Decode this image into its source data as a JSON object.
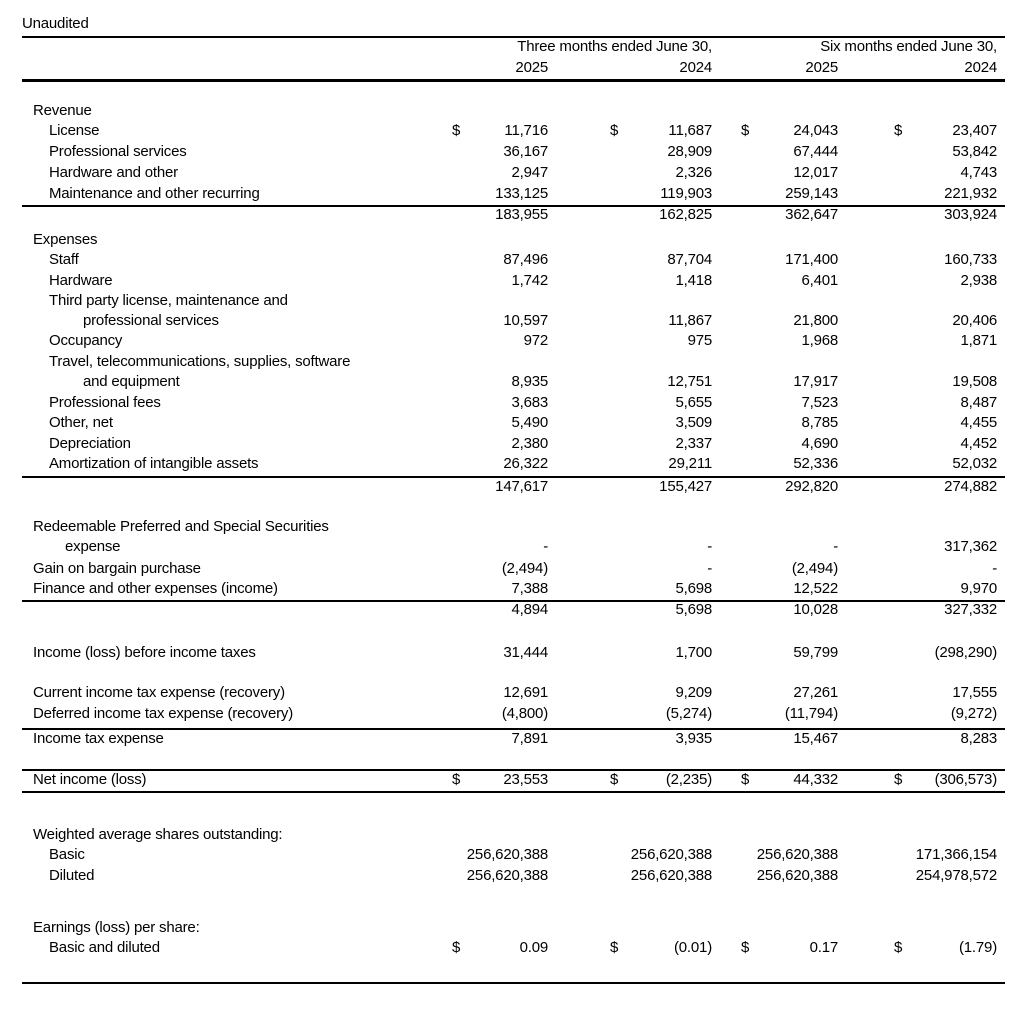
{
  "caption": "Unaudited",
  "header": {
    "group1": "Three months ended June 30,",
    "group2": "Six months ended June 30,",
    "years": [
      "2025",
      "2024",
      "2025",
      "2024"
    ]
  },
  "currency_symbol": "$",
  "rows": [
    {
      "label": "Revenue",
      "values": null
    },
    {
      "label": "License",
      "values": [
        "11,716",
        "11,687",
        "24,043",
        "23,407"
      ],
      "dollar": true
    },
    {
      "label": "Professional services",
      "values": [
        "36,167",
        "28,909",
        "67,444",
        "53,842"
      ]
    },
    {
      "label": "Hardware and other",
      "values": [
        "2,947",
        "2,326",
        "12,017",
        "4,743"
      ]
    },
    {
      "label": "Maintenance and other recurring",
      "values": [
        "133,125",
        "119,903",
        "259,143",
        "221,932"
      ]
    },
    {
      "label": "",
      "values": [
        "183,955",
        "162,825",
        "362,647",
        "303,924"
      ]
    },
    {
      "label": "Expenses",
      "values": null
    },
    {
      "label": "Staff",
      "values": [
        "87,496",
        "87,704",
        "171,400",
        "160,733"
      ]
    },
    {
      "label": "Hardware",
      "values": [
        "1,742",
        "1,418",
        "6,401",
        "2,938"
      ]
    },
    {
      "label": "Third party license, maintenance and",
      "values": null
    },
    {
      "label": "professional services",
      "values": [
        "10,597",
        "11,867",
        "21,800",
        "20,406"
      ]
    },
    {
      "label": "Occupancy",
      "values": [
        "972",
        "975",
        "1,968",
        "1,871"
      ]
    },
    {
      "label": "Travel, telecommunications, supplies, software",
      "values": null
    },
    {
      "label": "and equipment",
      "values": [
        "8,935",
        "12,751",
        "17,917",
        "19,508"
      ]
    },
    {
      "label": "Professional fees",
      "values": [
        "3,683",
        "5,655",
        "7,523",
        "8,487"
      ]
    },
    {
      "label": "Other, net",
      "values": [
        "5,490",
        "3,509",
        "8,785",
        "4,455"
      ]
    },
    {
      "label": "Depreciation",
      "values": [
        "2,380",
        "2,337",
        "4,690",
        "4,452"
      ]
    },
    {
      "label": "Amortization of intangible assets",
      "values": [
        "26,322",
        "29,211",
        "52,336",
        "52,032"
      ]
    },
    {
      "label": "",
      "values": [
        "147,617",
        "155,427",
        "292,820",
        "274,882"
      ]
    },
    {
      "label": "Redeemable Preferred and Special Securities",
      "values": null
    },
    {
      "label": "expense",
      "values": [
        "-",
        "-",
        "-",
        "317,362"
      ]
    },
    {
      "label": "Gain on bargain purchase",
      "values": [
        "(2,494)",
        "-",
        "(2,494)",
        "-"
      ]
    },
    {
      "label": "Finance and other expenses (income)",
      "values": [
        "7,388",
        "5,698",
        "12,522",
        "9,970"
      ]
    },
    {
      "label": "",
      "values": [
        "4,894",
        "5,698",
        "10,028",
        "327,332"
      ]
    },
    {
      "label": "Income (loss) before income taxes",
      "values": [
        "31,444",
        "1,700",
        "59,799",
        "(298,290)"
      ]
    },
    {
      "label": "Current income tax expense (recovery)",
      "values": [
        "12,691",
        "9,209",
        "27,261",
        "17,555"
      ]
    },
    {
      "label": "Deferred income tax expense (recovery)",
      "values": [
        "(4,800)",
        "(5,274)",
        "(11,794)",
        "(9,272)"
      ]
    },
    {
      "label": "Income tax expense",
      "values": [
        "7,891",
        "3,935",
        "15,467",
        "8,283"
      ]
    },
    {
      "label": "Net income (loss)",
      "values": [
        "23,553",
        "(2,235)",
        "44,332",
        "(306,573)"
      ],
      "dollar": true
    },
    {
      "label": "Weighted average shares outstanding:",
      "values": null
    },
    {
      "label": "Basic",
      "values": [
        "256,620,388",
        "256,620,388",
        "256,620,388",
        "171,366,154"
      ]
    },
    {
      "label": "Diluted",
      "values": [
        "256,620,388",
        "256,620,388",
        "256,620,388",
        "254,978,572"
      ]
    },
    {
      "label": "Earnings (loss) per share:",
      "values": null
    },
    {
      "label": "Basic and diluted",
      "values": [
        "0.09",
        "(0.01)",
        "0.17",
        "(1.79)"
      ],
      "dollar": true
    }
  ]
}
